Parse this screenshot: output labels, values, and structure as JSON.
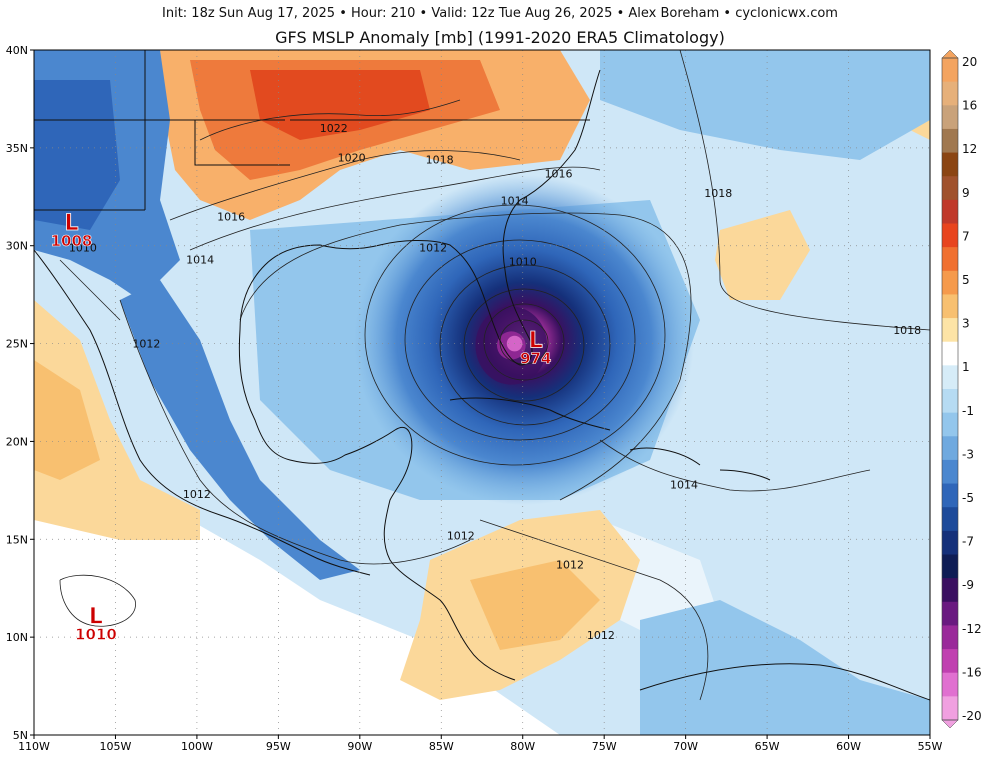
{
  "header": {
    "info_line": "Init: 18z Sun Aug 17, 2025  •  Hour: 210  •  Valid: 12z Tue Aug 26, 2025  •  Alex Boreham  •  cyclonicwx.com",
    "title": "GFS MSLP Anomaly [mb] (1991-2020 ERA5 Climatology)"
  },
  "map": {
    "lat_range": [
      5,
      40
    ],
    "lon_range": [
      -110,
      -55
    ],
    "lat_ticks": [
      "5N",
      "10N",
      "15N",
      "20N",
      "25N",
      "30N",
      "35N",
      "40N"
    ],
    "lon_ticks": [
      "110W",
      "105W",
      "100W",
      "95W",
      "90W",
      "85W",
      "80W",
      "75W",
      "70W",
      "65W",
      "60W",
      "55W"
    ],
    "isobar_labels": [
      {
        "text": "1022",
        "lon": -91.6,
        "lat": 35.9
      },
      {
        "text": "1020",
        "lon": -90.5,
        "lat": 34.4
      },
      {
        "text": "1018",
        "lon": -85.1,
        "lat": 34.3
      },
      {
        "text": "1016",
        "lon": -77.8,
        "lat": 33.6
      },
      {
        "text": "1014",
        "lon": -80.5,
        "lat": 32.2
      },
      {
        "text": "1016",
        "lon": -97.9,
        "lat": 31.4
      },
      {
        "text": "1012",
        "lon": -85.5,
        "lat": 29.8
      },
      {
        "text": "1010",
        "lon": -80.0,
        "lat": 29.1
      },
      {
        "text": "1014",
        "lon": -99.8,
        "lat": 29.2
      },
      {
        "text": "1010",
        "lon": -107.0,
        "lat": 29.8
      },
      {
        "text": "1018",
        "lon": -68.0,
        "lat": 32.6
      },
      {
        "text": "1018",
        "lon": -56.4,
        "lat": 25.6
      },
      {
        "text": "1012",
        "lon": -103.1,
        "lat": 24.9
      },
      {
        "text": "1012",
        "lon": -100.0,
        "lat": 17.2
      },
      {
        "text": "1012",
        "lon": -83.8,
        "lat": 15.1
      },
      {
        "text": "1014",
        "lon": -70.1,
        "lat": 17.7
      },
      {
        "text": "1012",
        "lon": -77.1,
        "lat": 13.6
      },
      {
        "text": "1012",
        "lon": -75.2,
        "lat": 10.0
      }
    ],
    "lows": [
      {
        "letter": "L",
        "value": "1008",
        "lon": -107.7,
        "lat": 30.6,
        "color": "#cc0000"
      },
      {
        "letter": "L",
        "value": "974",
        "lon": -79.2,
        "lat": 24.6,
        "color": "#cc0000"
      },
      {
        "letter": "L",
        "value": "1010",
        "lon": -106.2,
        "lat": 10.5,
        "color": "#cc0000"
      }
    ],
    "anomaly_fields": [
      {
        "lon": -80.7,
        "lat": 24.9,
        "rx": 5.5,
        "ry": 5.0,
        "value": -20
      },
      {
        "lon": -80.7,
        "lat": 24.9,
        "rx": 2.2,
        "ry": 1.8,
        "value": -16
      },
      {
        "lon": -80.5,
        "lat": 25.0,
        "rx": 1.2,
        "ry": 1.0,
        "value": -12
      }
    ]
  },
  "colorbar": {
    "labels": [
      "20",
      "16",
      "12",
      "9",
      "7",
      "5",
      "3",
      "1",
      "-1",
      "-3",
      "-5",
      "-7",
      "-9",
      "-12",
      "-16",
      "-20"
    ],
    "colors": [
      "#f4a460",
      "#e6b07a",
      "#c9a27a",
      "#a07850",
      "#8b4513",
      "#a0522d",
      "#c0392b",
      "#e8441e",
      "#f07030",
      "#f59a4c",
      "#f8c070",
      "#fde4a6",
      "#ffffff",
      "#d6ecf8",
      "#b6dbf3",
      "#93c6ec",
      "#6fa9df",
      "#4b87cf",
      "#2f66b9",
      "#1d4a9a",
      "#15307a",
      "#0f1d55",
      "#3a1060",
      "#6a1a80",
      "#9a2a9a",
      "#c040b0",
      "#e070d0",
      "#f0a0e0"
    ]
  }
}
